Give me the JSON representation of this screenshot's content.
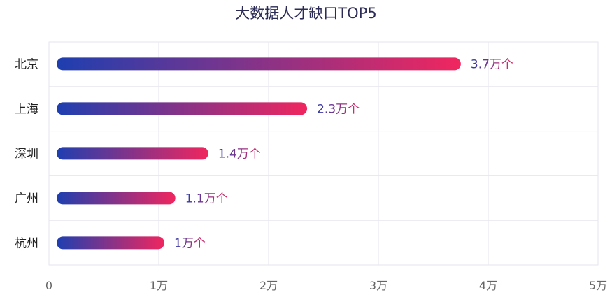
{
  "chart_data": {
    "type": "bar",
    "orientation": "horizontal",
    "title": "大数据人才缺口TOP5",
    "categories": [
      "北京",
      "上海",
      "深圳",
      "广州",
      "杭州"
    ],
    "values": [
      3.7,
      2.3,
      1.4,
      1.1,
      1
    ],
    "data_labels": [
      "3.7万个",
      "2.3万个",
      "1.4万个",
      "1.1万个",
      "1万个"
    ],
    "x_ticks": [
      {
        "value": 0,
        "label": "0"
      },
      {
        "value": 1,
        "label": "1万"
      },
      {
        "value": 2,
        "label": "2万"
      },
      {
        "value": 3,
        "label": "3万"
      },
      {
        "value": 4,
        "label": "4万"
      },
      {
        "value": 5,
        "label": "5万"
      }
    ],
    "xlim": [
      0,
      5
    ],
    "grid": true,
    "colors": {
      "gradient_start": "#1e3fb0",
      "gradient_end": "#f0265f",
      "grid": "#e6e6ee",
      "tick_label": "#666666",
      "category_label": "#222222"
    }
  }
}
